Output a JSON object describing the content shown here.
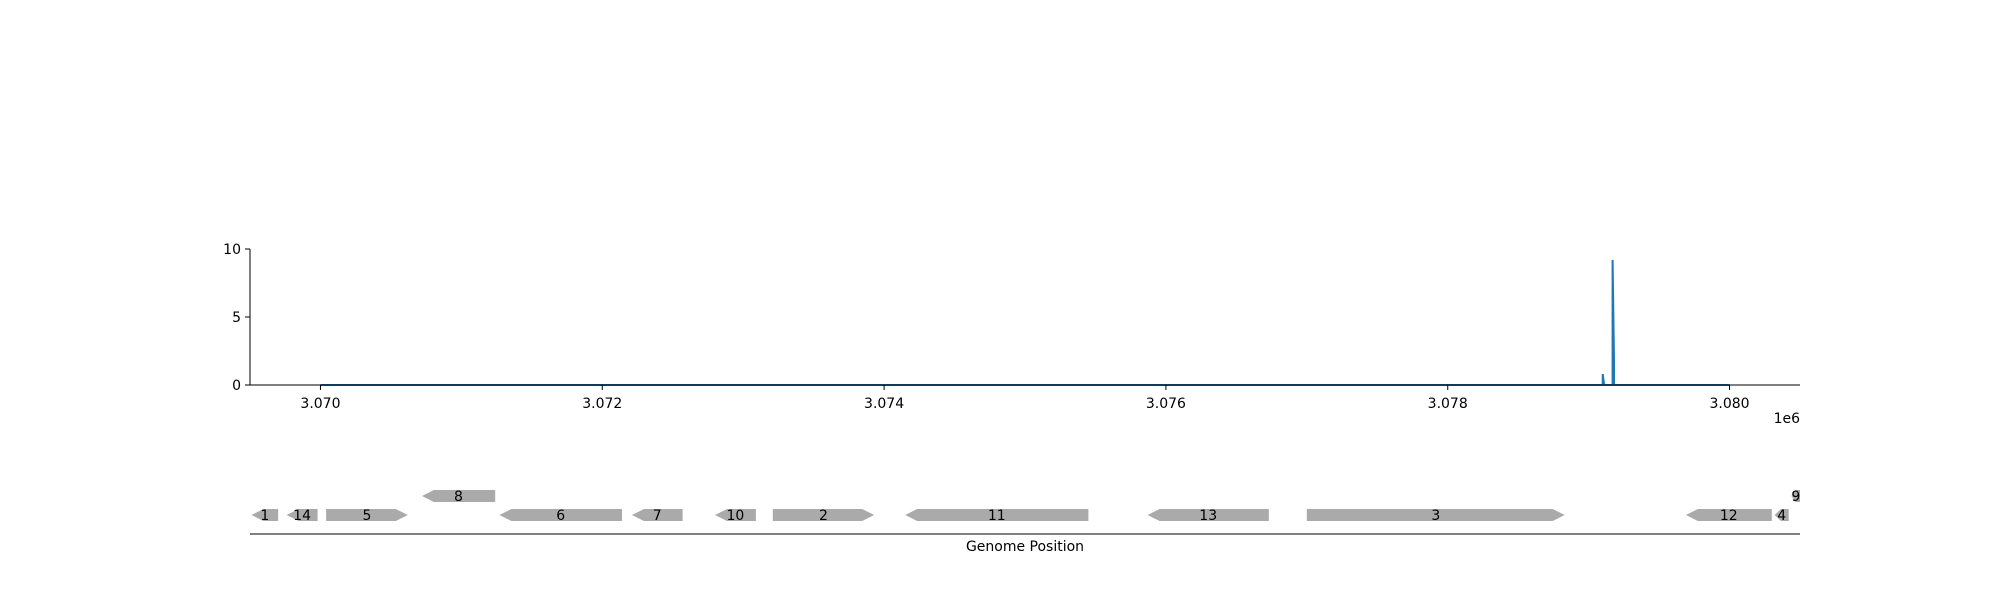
{
  "chart_data": [
    {
      "type": "line",
      "title": "",
      "xlabel": "",
      "ylabel": "",
      "x_offset_label": "1e6",
      "xlim": [
        3069500,
        3080500
      ],
      "ylim": [
        0,
        10
      ],
      "x_ticks": [
        3070000,
        3072000,
        3074000,
        3076000,
        3078000,
        3080000
      ],
      "x_tick_labels": [
        "3.070",
        "3.072",
        "3.074",
        "3.076",
        "3.078",
        "3.080"
      ],
      "y_ticks": [
        0,
        5,
        10
      ],
      "y_tick_labels": [
        "0",
        "5",
        "10"
      ],
      "line_color": "#1f77b4",
      "series": [
        {
          "x": [
            3070000,
            3079090,
            3079100,
            3079100,
            3079110,
            3079160,
            3079170,
            3079170,
            3079180,
            3079180,
            3079190,
            3080000
          ],
          "y": [
            0,
            0,
            0,
            0.8,
            0,
            0,
            0,
            9.2,
            1.8,
            0,
            0,
            0
          ]
        }
      ]
    },
    {
      "type": "gene_track",
      "xlabel": "Genome Position",
      "xlim": [
        3069500,
        3080500
      ],
      "gene_color": "#aaaaaa",
      "genes": [
        {
          "label": "1",
          "start": 3069510,
          "end": 3069700,
          "strand": -1,
          "row": 0
        },
        {
          "label": "14",
          "start": 3069760,
          "end": 3069980,
          "strand": -1,
          "row": 0
        },
        {
          "label": "5",
          "start": 3070040,
          "end": 3070620,
          "strand": 1,
          "row": 0
        },
        {
          "label": "8",
          "start": 3070720,
          "end": 3071240,
          "strand": -1,
          "row": 1
        },
        {
          "label": "6",
          "start": 3071270,
          "end": 3072140,
          "strand": -1,
          "row": 0
        },
        {
          "label": "7",
          "start": 3072210,
          "end": 3072570,
          "strand": -1,
          "row": 0
        },
        {
          "label": "10",
          "start": 3072800,
          "end": 3073090,
          "strand": -1,
          "row": 0
        },
        {
          "label": "2",
          "start": 3073210,
          "end": 3073930,
          "strand": 1,
          "row": 0
        },
        {
          "label": "11",
          "start": 3074150,
          "end": 3075450,
          "strand": -1,
          "row": 0
        },
        {
          "label": "13",
          "start": 3075870,
          "end": 3076730,
          "strand": -1,
          "row": 0
        },
        {
          "label": "3",
          "start": 3077000,
          "end": 3078830,
          "strand": 1,
          "row": 0
        },
        {
          "label": "12",
          "start": 3079690,
          "end": 3080300,
          "strand": -1,
          "row": 0
        },
        {
          "label": "4",
          "start": 3080320,
          "end": 3080420,
          "strand": -1,
          "row": 0
        },
        {
          "label": "9",
          "start": 3080440,
          "end": 3080500,
          "strand": -1,
          "row": 1
        }
      ]
    }
  ]
}
